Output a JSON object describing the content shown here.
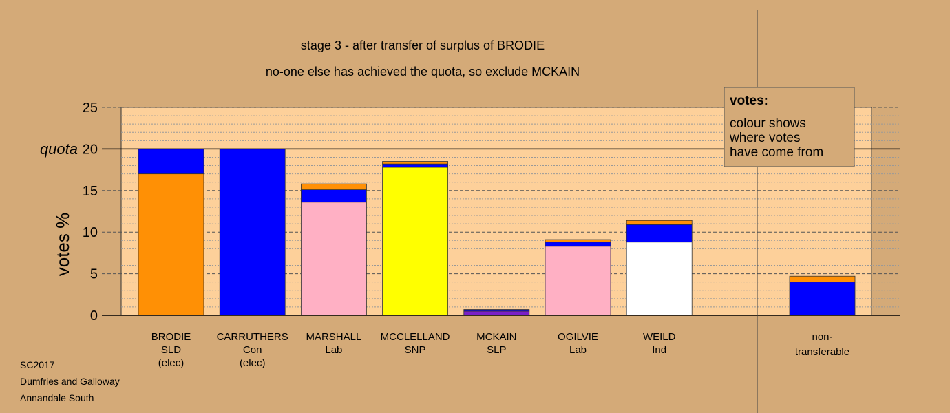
{
  "colors": {
    "background": "#d4aa78",
    "plot_area": "#fdd09a",
    "SLD": "#ff9005",
    "Con": "#0000ff",
    "Lab": "#ffb0c4",
    "SNP": "#ffff00",
    "SLP": "#7a1fc8",
    "Ind": "#ffffff"
  },
  "chart_data": {
    "type": "bar",
    "stacked": true,
    "title": "stage 3 - after transfer of surplus of BRODIE",
    "subtitle": "no-one else has achieved the quota, so exclude MCKAIN",
    "ylabel": "votes %",
    "ylim": [
      0,
      25
    ],
    "yticks": [
      "0",
      "5",
      "10",
      "15",
      "20",
      "25"
    ],
    "quota": 20,
    "quota_label": "quota",
    "grid": true,
    "legend": {
      "title": "votes:",
      "lines": [
        "colour shows",
        "where votes",
        "have come from"
      ]
    },
    "candidates": [
      {
        "name": "BRODIE",
        "party": "SLD",
        "status": "(elec)",
        "segments": [
          {
            "from": "SLD",
            "value": 17.0
          },
          {
            "from": "Con",
            "value": 3.0
          }
        ]
      },
      {
        "name": "CARRUTHERS",
        "party": "Con",
        "status": "(elec)",
        "segments": [
          {
            "from": "Con",
            "value": 20.0
          }
        ]
      },
      {
        "name": "MARSHALL",
        "party": "Lab",
        "status": "",
        "segments": [
          {
            "from": "Lab",
            "value": 13.6
          },
          {
            "from": "Con",
            "value": 1.5
          },
          {
            "from": "SLD",
            "value": 0.7
          }
        ]
      },
      {
        "name": "MCCLELLAND",
        "party": "SNP",
        "status": "",
        "segments": [
          {
            "from": "SNP",
            "value": 17.8
          },
          {
            "from": "Con",
            "value": 0.4
          },
          {
            "from": "SLD",
            "value": 0.3
          }
        ]
      },
      {
        "name": "MCKAIN",
        "party": "SLP",
        "status": "",
        "segments": [
          {
            "from": "SLP",
            "value": 0.5
          },
          {
            "from": "Con",
            "value": 0.2
          }
        ]
      },
      {
        "name": "OGILVIE",
        "party": "Lab",
        "status": "",
        "segments": [
          {
            "from": "Lab",
            "value": 8.3
          },
          {
            "from": "Con",
            "value": 0.5
          },
          {
            "from": "SLD",
            "value": 0.3
          }
        ]
      },
      {
        "name": "WEILD",
        "party": "Ind",
        "status": "",
        "segments": [
          {
            "from": "Ind",
            "value": 8.8
          },
          {
            "from": "Con",
            "value": 2.1
          },
          {
            "from": "SLD",
            "value": 0.5
          }
        ]
      }
    ],
    "nontransferable": {
      "label_lines": [
        "non-",
        "transferable"
      ],
      "segments": [
        {
          "from": "Con",
          "value": 4.0
        },
        {
          "from": "SLD",
          "value": 0.7
        }
      ]
    }
  },
  "footer": {
    "lines": [
      "SC2017",
      "Dumfries and Galloway",
      "Annandale South"
    ]
  }
}
